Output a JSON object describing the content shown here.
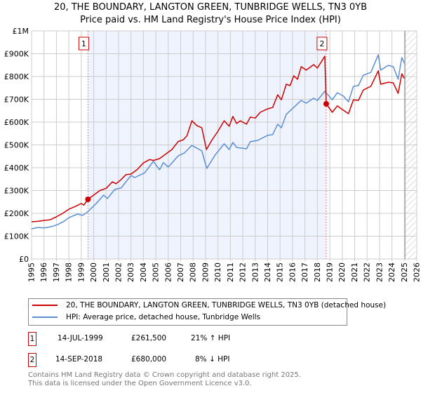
{
  "title_line1": "20, THE BOUNDARY, LANGTON GREEN, TUNBRIDGE WELLS, TN3 0YB",
  "title_line2": "Price paid vs. HM Land Registry's House Price Index (HPI)",
  "chart_data": {
    "type": "line",
    "ylabel": "",
    "xlabel": "",
    "xlim": [
      1995,
      2026
    ],
    "ylim": [
      0,
      1000000
    ],
    "grid": true,
    "y_ticks": [
      {
        "v": 0,
        "label": "£0"
      },
      {
        "v": 100000,
        "label": "£100K"
      },
      {
        "v": 200000,
        "label": "£200K"
      },
      {
        "v": 300000,
        "label": "£300K"
      },
      {
        "v": 400000,
        "label": "£400K"
      },
      {
        "v": 500000,
        "label": "£500K"
      },
      {
        "v": 600000,
        "label": "£600K"
      },
      {
        "v": 700000,
        "label": "£700K"
      },
      {
        "v": 800000,
        "label": "£800K"
      },
      {
        "v": 900000,
        "label": "£900K"
      },
      {
        "v": 1000000,
        "label": "£1M"
      }
    ],
    "x_ticks": [
      "1995",
      "1996",
      "1997",
      "1998",
      "1999",
      "2000",
      "2001",
      "2002",
      "2003",
      "2004",
      "2005",
      "2006",
      "2007",
      "2008",
      "2009",
      "2010",
      "2011",
      "2012",
      "2013",
      "2014",
      "2015",
      "2016",
      "2017",
      "2018",
      "2019",
      "2020",
      "2021",
      "2022",
      "2023",
      "2024",
      "2025",
      "2026"
    ],
    "shaded_range": [
      1999.54,
      2018.71
    ],
    "hatched_from": 2025.05,
    "series": [
      {
        "name": "20, THE BOUNDARY, LANGTON GREEN, TUNBRIDGE WELLS, TN3 0YB (detached house)",
        "color": "#cc0000",
        "points": [
          [
            1995.0,
            163000
          ],
          [
            1995.5,
            165000
          ],
          [
            1996.0,
            169000
          ],
          [
            1996.5,
            172000
          ],
          [
            1997.0,
            185000
          ],
          [
            1997.5,
            200000
          ],
          [
            1998.0,
            218000
          ],
          [
            1998.5,
            230000
          ],
          [
            1999.0,
            243000
          ],
          [
            1999.2,
            236000
          ],
          [
            1999.54,
            261500
          ],
          [
            2000.0,
            280000
          ],
          [
            2000.5,
            300000
          ],
          [
            2001.0,
            310000
          ],
          [
            2001.5,
            338000
          ],
          [
            2001.8,
            330000
          ],
          [
            2002.2,
            348000
          ],
          [
            2002.6,
            370000
          ],
          [
            2003.0,
            372000
          ],
          [
            2003.5,
            392000
          ],
          [
            2004.0,
            421000
          ],
          [
            2004.5,
            436000
          ],
          [
            2004.8,
            432000
          ],
          [
            2005.3,
            440000
          ],
          [
            2005.8,
            460000
          ],
          [
            2006.3,
            480000
          ],
          [
            2006.8,
            515000
          ],
          [
            2007.2,
            522000
          ],
          [
            2007.5,
            540000
          ],
          [
            2007.9,
            606000
          ],
          [
            2008.3,
            585000
          ],
          [
            2008.7,
            575000
          ],
          [
            2009.07,
            480000
          ],
          [
            2009.5,
            520000
          ],
          [
            2010.0,
            560000
          ],
          [
            2010.5,
            606000
          ],
          [
            2010.9,
            582000
          ],
          [
            2011.2,
            625000
          ],
          [
            2011.5,
            594000
          ],
          [
            2011.8,
            606000
          ],
          [
            2012.3,
            591000
          ],
          [
            2012.6,
            622000
          ],
          [
            2013.0,
            618000
          ],
          [
            2013.4,
            643000
          ],
          [
            2014.0,
            658000
          ],
          [
            2014.4,
            664000
          ],
          [
            2014.8,
            720000
          ],
          [
            2015.1,
            698000
          ],
          [
            2015.5,
            766000
          ],
          [
            2015.8,
            760000
          ],
          [
            2016.1,
            803000
          ],
          [
            2016.4,
            788000
          ],
          [
            2016.7,
            843000
          ],
          [
            2017.1,
            828000
          ],
          [
            2017.7,
            852000
          ],
          [
            2018.0,
            837000
          ],
          [
            2018.6,
            889000
          ],
          [
            2018.71,
            680000
          ],
          [
            2019.2,
            643000
          ],
          [
            2019.6,
            671000
          ],
          [
            2020.1,
            652000
          ],
          [
            2020.5,
            637000
          ],
          [
            2020.9,
            698000
          ],
          [
            2021.3,
            695000
          ],
          [
            2021.7,
            741000
          ],
          [
            2022.3,
            757000
          ],
          [
            2022.9,
            825000
          ],
          [
            2023.1,
            766000
          ],
          [
            2023.7,
            775000
          ],
          [
            2024.1,
            772000
          ],
          [
            2024.5,
            726000
          ],
          [
            2024.8,
            812000
          ],
          [
            2025.0,
            791000
          ]
        ]
      },
      {
        "name": "HPI: Average price, detached house, Tunbridge Wells",
        "color": "#5b8fd4",
        "points": [
          [
            1995.0,
            132000
          ],
          [
            1995.5,
            138000
          ],
          [
            1996.0,
            136000
          ],
          [
            1996.6,
            142000
          ],
          [
            1997.1,
            151000
          ],
          [
            1997.6,
            165000
          ],
          [
            1998.0,
            181000
          ],
          [
            1998.7,
            197000
          ],
          [
            1999.1,
            191000
          ],
          [
            1999.5,
            206000
          ],
          [
            2000.2,
            243000
          ],
          [
            2000.8,
            280000
          ],
          [
            2001.1,
            265000
          ],
          [
            2001.7,
            305000
          ],
          [
            2002.2,
            311000
          ],
          [
            2003.0,
            366000
          ],
          [
            2003.3,
            357000
          ],
          [
            2004.1,
            378000
          ],
          [
            2004.8,
            428000
          ],
          [
            2005.3,
            391000
          ],
          [
            2005.6,
            422000
          ],
          [
            2006.0,
            403000
          ],
          [
            2006.8,
            452000
          ],
          [
            2007.3,
            465000
          ],
          [
            2007.9,
            498000
          ],
          [
            2008.7,
            474000
          ],
          [
            2009.1,
            397000
          ],
          [
            2009.8,
            458000
          ],
          [
            2010.5,
            505000
          ],
          [
            2010.9,
            480000
          ],
          [
            2011.2,
            511000
          ],
          [
            2011.5,
            489000
          ],
          [
            2012.3,
            483000
          ],
          [
            2012.6,
            514000
          ],
          [
            2013.2,
            520000
          ],
          [
            2014.0,
            542000
          ],
          [
            2014.4,
            545000
          ],
          [
            2014.8,
            591000
          ],
          [
            2015.1,
            575000
          ],
          [
            2015.5,
            634000
          ],
          [
            2016.1,
            665000
          ],
          [
            2016.7,
            695000
          ],
          [
            2017.1,
            683000
          ],
          [
            2017.7,
            705000
          ],
          [
            2018.0,
            695000
          ],
          [
            2018.6,
            735000
          ],
          [
            2019.2,
            698000
          ],
          [
            2019.6,
            729000
          ],
          [
            2020.1,
            714000
          ],
          [
            2020.5,
            689000
          ],
          [
            2020.9,
            757000
          ],
          [
            2021.3,
            760000
          ],
          [
            2021.7,
            806000
          ],
          [
            2022.3,
            818000
          ],
          [
            2022.9,
            895000
          ],
          [
            2023.1,
            828000
          ],
          [
            2023.7,
            849000
          ],
          [
            2024.1,
            843000
          ],
          [
            2024.5,
            788000
          ],
          [
            2024.8,
            883000
          ],
          [
            2025.0,
            858000
          ]
        ]
      }
    ],
    "sales": [
      {
        "label": "1",
        "year": 1999.54,
        "value": 261500
      },
      {
        "label": "2",
        "year": 2018.71,
        "value": 680000
      }
    ]
  },
  "legend": [
    {
      "label": "20, THE BOUNDARY, LANGTON GREEN, TUNBRIDGE WELLS, TN3 0YB (detached house)",
      "color": "#cc0000"
    },
    {
      "label": "HPI: Average price, detached house, Tunbridge Wells",
      "color": "#5b8fd4"
    }
  ],
  "transactions": [
    {
      "num": "1",
      "date": "14-JUL-1999",
      "price": "£261,500",
      "hpi": "21% ↑ HPI"
    },
    {
      "num": "2",
      "date": "14-SEP-2018",
      "price": "£680,000",
      "hpi": "8% ↓ HPI"
    }
  ],
  "footer_line1": "Contains HM Land Registry data © Crown copyright and database right 2025.",
  "footer_line2": "This data is licensed under the Open Government Licence v3.0."
}
